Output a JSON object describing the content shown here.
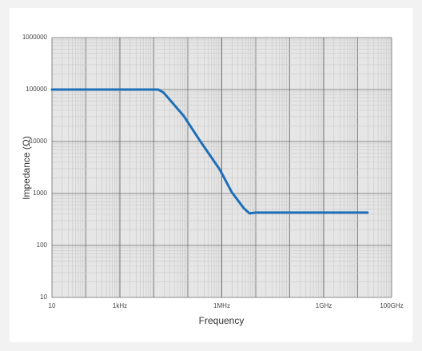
{
  "chart_data": {
    "type": "line",
    "x_label": "Frequency",
    "y_label": "Impedance (Ω)",
    "xscale": "log",
    "yscale": "log",
    "grid": true,
    "xlim": [
      10,
      100000000000
    ],
    "ylim": [
      10,
      1000000
    ],
    "xticks": [
      10,
      {
        "value": 1000,
        "label": "1kHz"
      },
      {
        "value": 1000000,
        "label": "1MHz"
      },
      {
        "value": 1000000000,
        "label": "1GHz"
      },
      {
        "value": 100000000000,
        "label": "100GHz"
      }
    ],
    "yticks": [
      10,
      100,
      1000,
      10000,
      100000,
      1000000
    ],
    "series": [
      {
        "name": "Impedance",
        "color": "#1f6fb8",
        "x": [
          10,
          13500,
          19500,
          76000,
          220000,
          870000,
          1950000,
          4400000,
          6500000,
          10000000,
          19500000000
        ],
        "values": [
          100000,
          100000,
          87000,
          31000,
          10700,
          2900,
          1070,
          525,
          415,
          430,
          430
        ]
      }
    ]
  }
}
